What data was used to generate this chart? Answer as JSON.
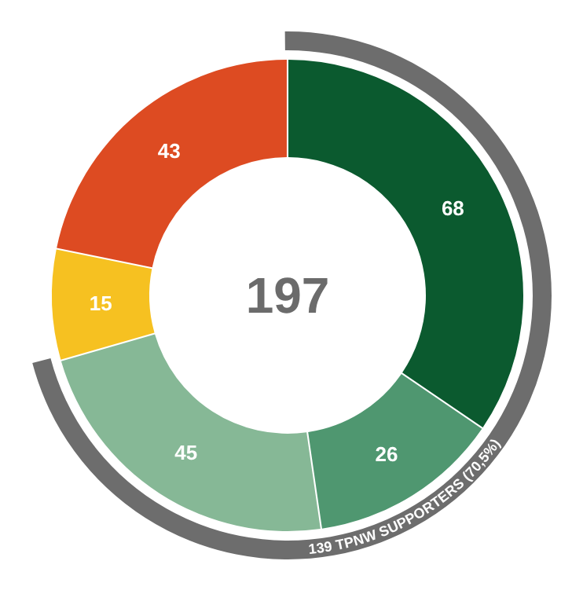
{
  "chart_data": {
    "type": "donut",
    "categories": [
      null,
      null,
      null,
      null,
      null
    ],
    "values": [
      68,
      26,
      45,
      15,
      43
    ],
    "colors": [
      "#0b5a2f",
      "#4f9770",
      "#86b896",
      "#f6c121",
      "#dd4b22"
    ],
    "data_labels": true,
    "annotations": [
      "197",
      "139 TPNW SUPPORTERS (70,5%)"
    ]
  }
}
